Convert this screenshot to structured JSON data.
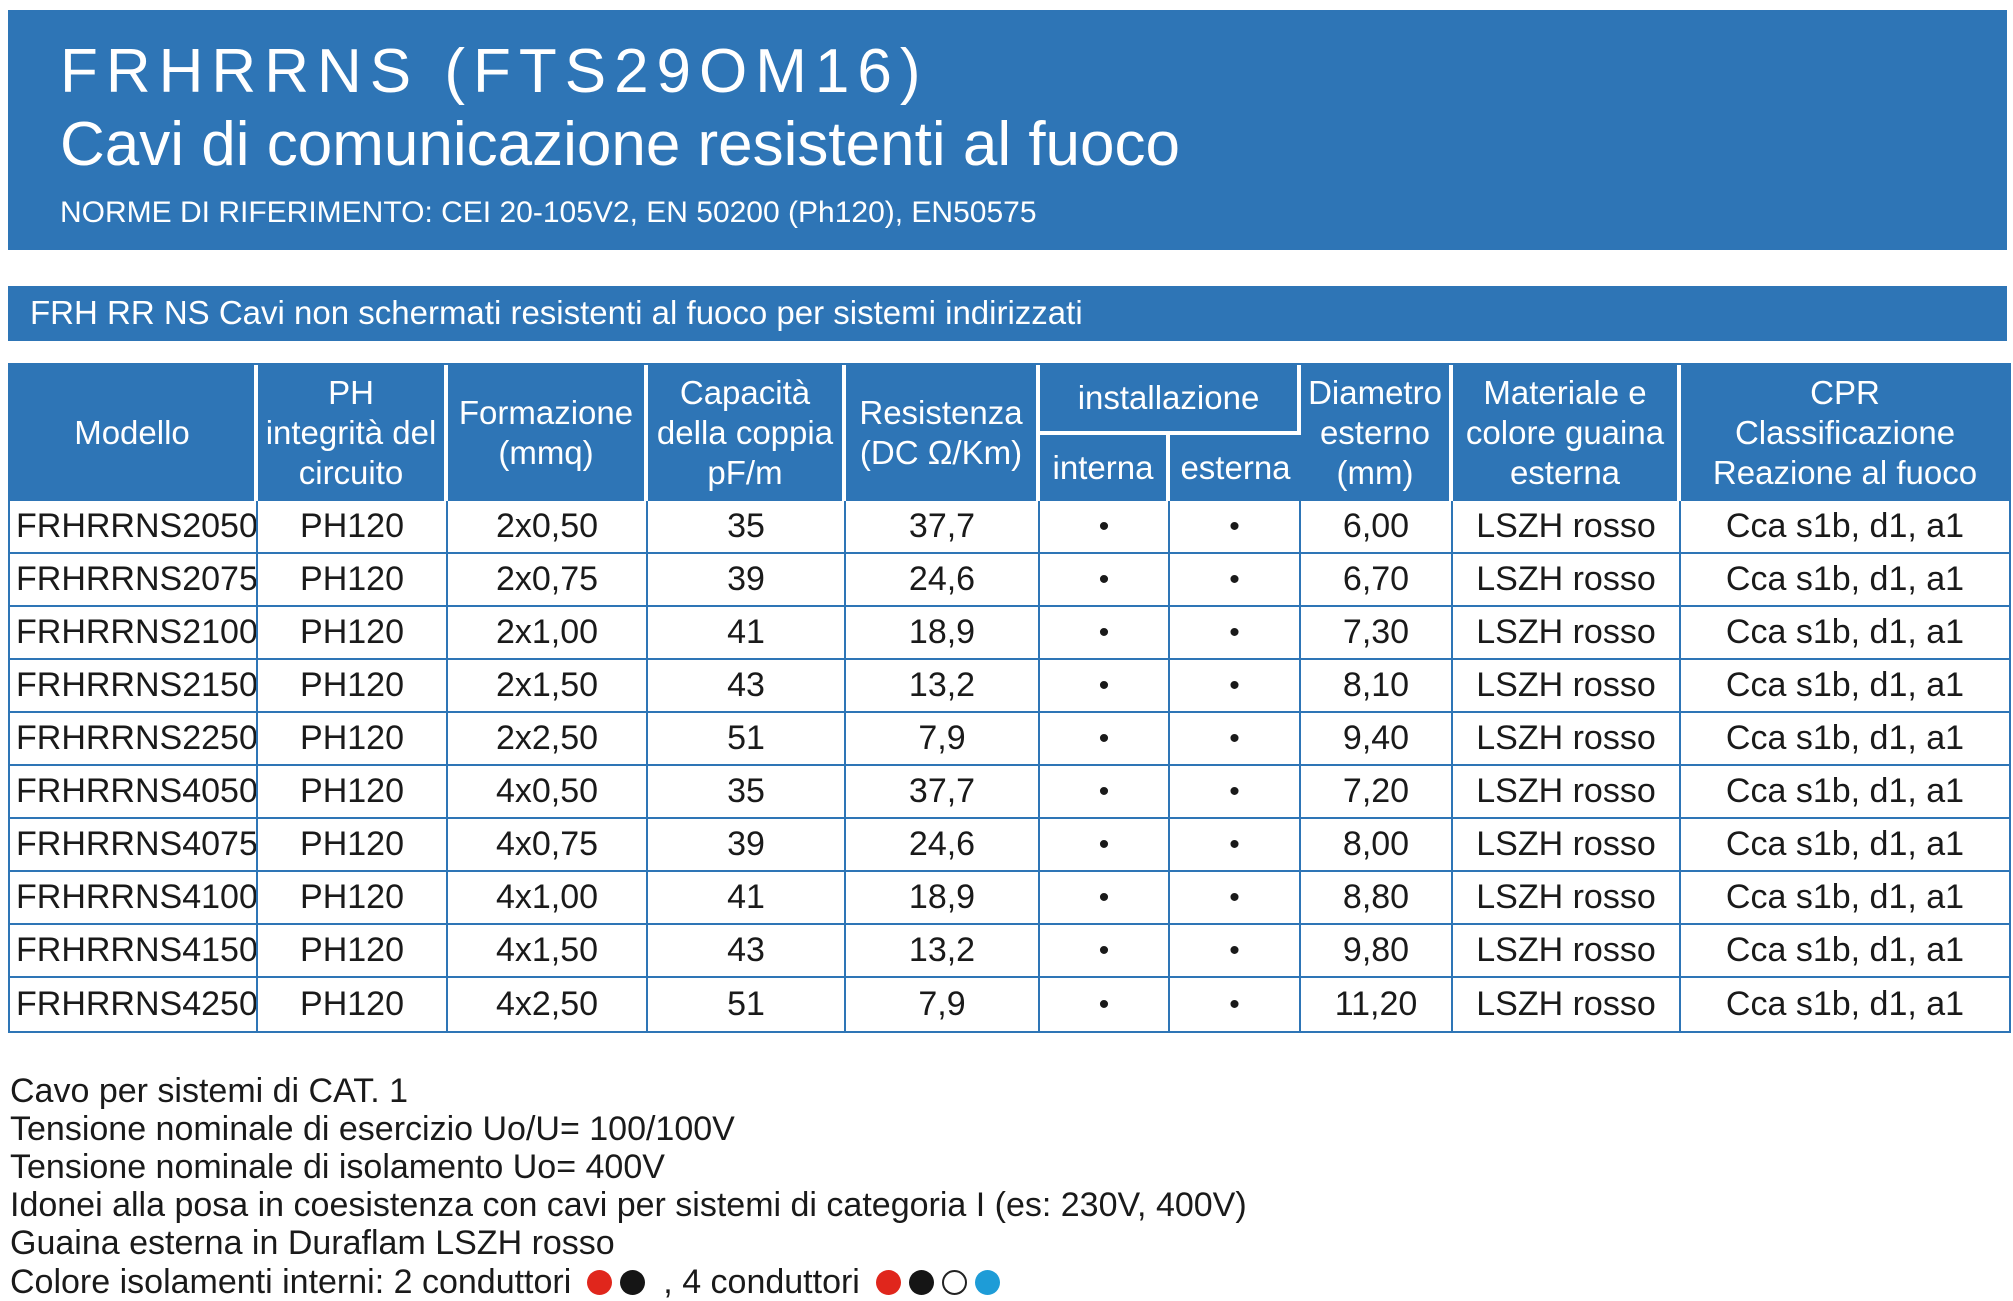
{
  "header": {
    "title_line1": "FRHRRNS (FTS29OM16)",
    "title_line2": "Cavi di comunicazione resistenti al fuoco",
    "subtitle": "NORME DI RIFERIMENTO: CEI 20-105V2, EN 50200 (Ph120), EN50575"
  },
  "banner": {
    "text": "FRH RR NS Cavi non schermati resistenti al fuoco per sistemi indirizzati"
  },
  "table": {
    "headers": {
      "modello": "Modello",
      "ph": "PH\nintegrità del\ncircuito",
      "formazione": "Formazione\n(mmq)",
      "capacita": "Capacità\ndella coppia\npF/m",
      "resistenza": "Resistenza\n(DC Ω/Km)",
      "installazione": "installazione",
      "interna": "interna",
      "esterna": "esterna",
      "diametro": "Diametro\nesterno\n(mm)",
      "materiale": "Materiale e\ncolore guaina\nesterna",
      "cpr": "CPR\nClassificazione\nReazione al fuoco"
    },
    "rows": [
      [
        "FRHRRNS2050",
        "PH120",
        "2x0,50",
        "35",
        "37,7",
        "•",
        "•",
        "6,00",
        "LSZH rosso",
        "Cca s1b, d1, a1"
      ],
      [
        "FRHRRNS2075",
        "PH120",
        "2x0,75",
        "39",
        "24,6",
        "•",
        "•",
        "6,70",
        "LSZH rosso",
        "Cca s1b, d1, a1"
      ],
      [
        "FRHRRNS2100",
        "PH120",
        "2x1,00",
        "41",
        "18,9",
        "•",
        "•",
        "7,30",
        "LSZH rosso",
        "Cca s1b, d1, a1"
      ],
      [
        "FRHRRNS2150",
        "PH120",
        "2x1,50",
        "43",
        "13,2",
        "•",
        "•",
        "8,10",
        "LSZH rosso",
        "Cca s1b, d1, a1"
      ],
      [
        "FRHRRNS2250",
        "PH120",
        "2x2,50",
        "51",
        "7,9",
        "•",
        "•",
        "9,40",
        "LSZH rosso",
        "Cca s1b, d1, a1"
      ],
      [
        "FRHRRNS4050",
        "PH120",
        "4x0,50",
        "35",
        "37,7",
        "•",
        "•",
        "7,20",
        "LSZH rosso",
        "Cca s1b, d1, a1"
      ],
      [
        "FRHRRNS4075",
        "PH120",
        "4x0,75",
        "39",
        "24,6",
        "•",
        "•",
        "8,00",
        "LSZH rosso",
        "Cca s1b, d1, a1"
      ],
      [
        "FRHRRNS4100",
        "PH120",
        "4x1,00",
        "41",
        "18,9",
        "•",
        "•",
        "8,80",
        "LSZH rosso",
        "Cca s1b, d1, a1"
      ],
      [
        "FRHRRNS4150",
        "PH120",
        "4x1,50",
        "43",
        "13,2",
        "•",
        "•",
        "9,80",
        "LSZH rosso",
        "Cca s1b, d1, a1"
      ],
      [
        "FRHRRNS4250",
        "PH120",
        "4x2,50",
        "51",
        "7,9",
        "•",
        "•",
        "11,20",
        "LSZH rosso",
        "Cca s1b, d1, a1"
      ]
    ]
  },
  "notes": {
    "lines": [
      "Cavo per sistemi di CAT. 1",
      "Tensione nominale di esercizio Uo/U= 100/100V",
      "Tensione nominale di isolamento Uo= 400V",
      "Idonei alla posa in coesistenza con cavi per sistemi di categoria I (es: 230V, 400V)",
      "Guaina esterna in Duraflam LSZH rosso"
    ],
    "colors_line": {
      "prefix": "Colore isolamenti interni: 2 conduttori",
      "separator": ", 4 conduttori",
      "two_cond_colors": [
        "#e0261c",
        "#151515",
        "",
        ""
      ],
      "four_cond_colors": [
        "#e0261c",
        "#151515",
        "#ffffff",
        "#1e9cd7"
      ]
    }
  },
  "colors": {
    "accent_blue": "#2e75b6",
    "dot_red": "#e0261c",
    "dot_black": "#151515",
    "dot_white": "#ffffff",
    "dot_blue": "#1e9cd7"
  }
}
